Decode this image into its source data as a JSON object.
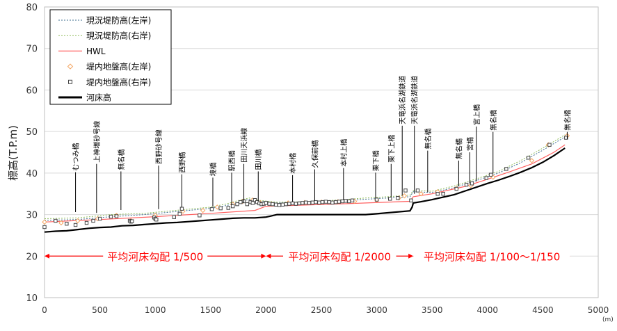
{
  "chart_data": {
    "type": "line",
    "title": "",
    "xlabel": "",
    "x_unit": "(m)",
    "ylabel": "標高(T.P.m)",
    "xlim": [
      0,
      5000
    ],
    "ylim": [
      10,
      80
    ],
    "xticks": [
      0,
      500,
      1000,
      1500,
      2000,
      2500,
      3000,
      3500,
      4000,
      4500,
      5000
    ],
    "yticks": [
      10,
      20,
      30,
      40,
      50,
      60,
      70,
      80
    ],
    "grid": "horizontal",
    "legend_position": "top-left",
    "legend": [
      {
        "label": "現況堤防高(左岸)",
        "style": "dotted-line",
        "color": "#3f6f8f"
      },
      {
        "label": "現況堤防高(右岸)",
        "style": "dotted-line",
        "color": "#8fbc5a"
      },
      {
        "label": "HWL",
        "style": "line",
        "color": "#ff6060"
      },
      {
        "label": "堤内地盤高(左岸)",
        "style": "diamond",
        "color": "#f4a460"
      },
      {
        "label": "堤内地盤高(右岸)",
        "style": "square",
        "color": "#444444"
      },
      {
        "label": "河床高",
        "style": "thick-line",
        "color": "#000000"
      }
    ],
    "series": [
      {
        "name": "現況堤防高(左岸)",
        "color": "#3f6f8f",
        "dash": "2,2",
        "width": 1,
        "x": [
          0,
          300,
          600,
          900,
          1100,
          1300,
          1500,
          1650,
          1750,
          1850,
          1950,
          2100,
          2400,
          2700,
          2900,
          3100,
          3300,
          3330,
          3500,
          3700,
          3900,
          4100,
          4300,
          4500,
          4700
        ],
        "y": [
          28.6,
          28.8,
          29.5,
          30.0,
          30.5,
          31.0,
          31.5,
          32.2,
          33.0,
          33.7,
          33.2,
          32.8,
          32.9,
          33.3,
          33.7,
          34.0,
          34.3,
          35.5,
          35.3,
          36.5,
          38.2,
          40.0,
          42.5,
          45.5,
          48.7
        ]
      },
      {
        "name": "現況堤防高(右岸)",
        "color": "#8fbc5a",
        "dash": "2,2",
        "width": 1,
        "x": [
          0,
          300,
          600,
          900,
          1100,
          1300,
          1500,
          1650,
          1750,
          1850,
          1950,
          2100,
          2400,
          2700,
          2900,
          3100,
          3300,
          3330,
          3500,
          3700,
          3900,
          4100,
          4300,
          4500,
          4700
        ],
        "y": [
          29.0,
          29.2,
          30.0,
          30.3,
          30.8,
          31.3,
          31.8,
          32.6,
          33.4,
          34.0,
          33.4,
          33.0,
          33.1,
          33.6,
          34.0,
          34.3,
          34.7,
          35.8,
          35.6,
          36.9,
          38.6,
          40.4,
          43.0,
          46.0,
          49.2
        ]
      },
      {
        "name": "HWL",
        "color": "#ff6060",
        "width": 1.2,
        "x": [
          0,
          500,
          1000,
          1500,
          1900,
          2000,
          2500,
          2900,
          3300,
          3330,
          3500,
          3800,
          4000,
          4200,
          4400,
          4600,
          4700
        ],
        "y": [
          28.2,
          28.8,
          29.5,
          30.3,
          31.0,
          32.0,
          32.4,
          32.8,
          33.2,
          34.3,
          35.0,
          36.8,
          38.5,
          40.3,
          42.2,
          45.0,
          46.8
        ]
      },
      {
        "name": "河床高",
        "color": "#000000",
        "width": 2.2,
        "x": [
          0,
          100,
          200,
          300,
          400,
          500,
          600,
          700,
          800,
          900,
          1000,
          1100,
          1200,
          1300,
          1400,
          1500,
          1600,
          1700,
          1800,
          1900,
          2000,
          2050,
          2100,
          2500,
          2900,
          3000,
          3300,
          3320,
          3330,
          3400,
          3500,
          3600,
          3700,
          3800,
          3900,
          4000,
          4100,
          4200,
          4300,
          4400,
          4500,
          4600,
          4700
        ],
        "y": [
          25.8,
          26.0,
          26.1,
          26.4,
          26.7,
          26.9,
          27.0,
          27.3,
          27.4,
          27.6,
          27.8,
          28.0,
          28.1,
          28.3,
          28.5,
          28.7,
          28.9,
          29.1,
          29.2,
          29.2,
          29.4,
          29.7,
          30.0,
          30.0,
          30.0,
          30.2,
          30.9,
          31.8,
          32.8,
          33.1,
          33.6,
          34.2,
          34.8,
          35.7,
          36.6,
          37.5,
          38.3,
          39.2,
          40.2,
          41.3,
          42.6,
          44.2,
          46.0
        ]
      }
    ],
    "scatter_left": {
      "name": "堤内地盤高(左岸)",
      "x": [
        0,
        150,
        300,
        480,
        650,
        780,
        1000,
        1250,
        1430,
        1560,
        1700,
        1790,
        1880,
        1950,
        2050,
        2200,
        2350,
        2500,
        2650,
        2800,
        3000,
        3200,
        3250,
        3400,
        3550,
        3720,
        3850,
        4050,
        4400,
        4550,
        4720
      ],
      "y": [
        28.2,
        28.0,
        28.5,
        29.0,
        29.8,
        28.5,
        29.8,
        30.8,
        31.0,
        31.8,
        32.5,
        33.2,
        33.5,
        32.8,
        32.5,
        32.8,
        32.9,
        33.0,
        33.1,
        33.2,
        33.5,
        34.0,
        34.5,
        35.0,
        35.5,
        36.3,
        37.0,
        39.0,
        43.0,
        46.8,
        49.0
      ]
    },
    "scatter_right": {
      "name": "堤内地盤高(右岸)",
      "x": [
        0,
        100,
        200,
        280,
        380,
        440,
        500,
        600,
        650,
        770,
        780,
        790,
        990,
        1000,
        1010,
        1170,
        1220,
        1240,
        1400,
        1510,
        1590,
        1660,
        1700,
        1740,
        1770,
        1800,
        1830,
        1860,
        1880,
        1900,
        1920,
        1940,
        1960,
        1980,
        2000,
        2030,
        2060,
        2090,
        2120,
        2150,
        2180,
        2210,
        2240,
        2270,
        2300,
        2330,
        2360,
        2390,
        2420,
        2450,
        2480,
        2510,
        2540,
        2570,
        2600,
        2630,
        2660,
        2690,
        2720,
        2750,
        2780,
        3000,
        3120,
        3190,
        3260,
        3310,
        3370,
        3550,
        3600,
        3720,
        3810,
        3860,
        3990,
        4030,
        4170,
        4370,
        4560,
        4710
      ],
      "y": [
        27.0,
        28.5,
        27.8,
        27.5,
        28.0,
        28.5,
        29.0,
        29.5,
        29.6,
        28.5,
        28.3,
        28.4,
        29.3,
        29.0,
        28.8,
        29.4,
        30.2,
        31.4,
        29.8,
        31.3,
        31.5,
        31.6,
        32.0,
        32.5,
        33.0,
        33.2,
        32.5,
        33.0,
        32.8,
        33.5,
        33.0,
        32.7,
        32.5,
        32.6,
        32.8,
        32.6,
        32.5,
        32.4,
        32.3,
        32.4,
        32.5,
        32.6,
        32.7,
        32.6,
        32.7,
        32.8,
        32.9,
        32.8,
        32.9,
        33.0,
        32.9,
        33.0,
        33.1,
        33.0,
        32.9,
        33.0,
        33.1,
        33.2,
        33.3,
        33.2,
        33.4,
        33.6,
        33.8,
        34.0,
        35.8,
        33.4,
        35.8,
        35.0,
        35.0,
        36.2,
        37.2,
        37.5,
        38.8,
        39.6,
        41.0,
        43.7,
        46.8,
        48.5
      ]
    },
    "bridges": [
      {
        "label": "むつみ橋",
        "x": 280,
        "y_top": 40.2,
        "y_bot": 30.6
      },
      {
        "label": "上神増砂号線",
        "x": 470,
        "y_top": 42.2,
        "y_bot": 30.4
      },
      {
        "label": "無名橋",
        "x": 690,
        "y_top": 40.4,
        "y_bot": 31.1
      },
      {
        "label": "西野砂号線",
        "x": 1030,
        "y_top": 41.8,
        "y_bot": 31.3
      },
      {
        "label": "西野橋",
        "x": 1240,
        "y_top": 39.7,
        "y_bot": 31.7
      },
      {
        "label": "境橋",
        "x": 1520,
        "y_top": 38.9,
        "y_bot": 31.9
      },
      {
        "label": "駅西橋",
        "x": 1690,
        "y_top": 40.1,
        "y_bot": 32.3
      },
      {
        "label": "田川天浜線",
        "x": 1800,
        "y_top": 42.2,
        "y_bot": 32.8
      },
      {
        "label": "田川橋",
        "x": 1930,
        "y_top": 40.4,
        "y_bot": 33.3
      },
      {
        "label": "本村橋",
        "x": 2240,
        "y_top": 39.5,
        "y_bot": 33.1
      },
      {
        "label": "久保前橋",
        "x": 2440,
        "y_top": 40.9,
        "y_bot": 33.3
      },
      {
        "label": "本村上橋",
        "x": 2700,
        "y_top": 41.2,
        "y_bot": 33.6
      },
      {
        "label": "栗下橋",
        "x": 2990,
        "y_top": 40.1,
        "y_bot": 34.0
      },
      {
        "label": "栗下上橋",
        "x": 3130,
        "y_top": 42.2,
        "y_bot": 34.3
      },
      {
        "label": "天竜浜名湖鉄道",
        "x": 3230,
        "y_top": 51.4,
        "y_bot": 34.6
      },
      {
        "label": "天竜浜名湖鉄道",
        "x": 3340,
        "y_top": 51.4,
        "y_bot": 35.0
      },
      {
        "label": "無名橋",
        "x": 3460,
        "y_top": 45.4,
        "y_bot": 35.4
      },
      {
        "label": "無名橋",
        "x": 3740,
        "y_top": 43.0,
        "y_bot": 36.8
      },
      {
        "label": "宮橋",
        "x": 3840,
        "y_top": 45.0,
        "y_bot": 37.5
      },
      {
        "label": "宮上橋",
        "x": 3900,
        "y_top": 51.2,
        "y_bot": 38.0
      },
      {
        "label": "無名橋",
        "x": 4050,
        "y_top": 49.9,
        "y_bot": 39.9
      },
      {
        "label": "無名橋",
        "x": 4720,
        "y_top": 49.9,
        "y_bot": 48.2
      }
    ],
    "gradient_segments": [
      {
        "label": "平均河床勾配 1/500",
        "x_start": 0,
        "x_end": 2000
      },
      {
        "label": "平均河床勾配 1/2000",
        "x_start": 2000,
        "x_end": 3330
      },
      {
        "label": "平均河床勾配 1/100～1/150",
        "x_start": 3330,
        "x_end": 4750
      }
    ],
    "gradient_y": 20,
    "gradient_color": "#ff0000"
  }
}
